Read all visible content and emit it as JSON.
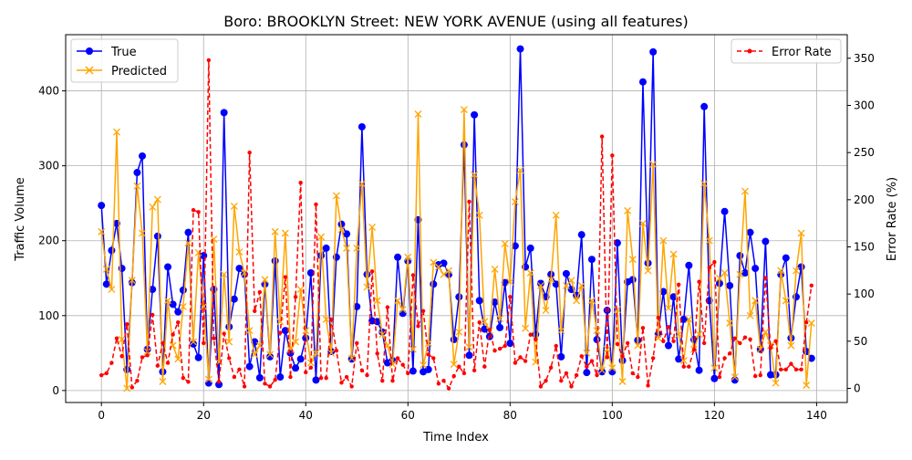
{
  "chart_data": {
    "type": "line",
    "title": "Boro: BROOKLYN Street: NEW YORK AVENUE (using all features)",
    "xlabel": "Time Index",
    "ylabel": "Traffic Volume",
    "y2label": "Error Rate (%)",
    "xlim": [
      -7,
      146
    ],
    "ylim": [
      -16,
      475
    ],
    "y2lim": [
      -15,
      375
    ],
    "xticks": [
      0,
      20,
      40,
      60,
      80,
      100,
      120,
      140
    ],
    "yticks": [
      0,
      100,
      200,
      300,
      400
    ],
    "y2ticks": [
      0,
      50,
      100,
      150,
      200,
      250,
      300,
      350
    ],
    "grid": true,
    "legend_left_placement": "upper-left",
    "legend_right_placement": "upper-right",
    "x": [
      0,
      1,
      2,
      3,
      4,
      5,
      6,
      7,
      8,
      9,
      10,
      11,
      12,
      13,
      14,
      15,
      16,
      17,
      18,
      19,
      20,
      21,
      22,
      23,
      24,
      25,
      26,
      27,
      28,
      29,
      30,
      31,
      32,
      33,
      34,
      35,
      36,
      37,
      38,
      39,
      40,
      41,
      42,
      43,
      44,
      45,
      46,
      47,
      48,
      49,
      50,
      51,
      52,
      53,
      54,
      55,
      56,
      57,
      58,
      59,
      60,
      61,
      62,
      63,
      64,
      65,
      66,
      67,
      68,
      69,
      70,
      71,
      72,
      73,
      74,
      75,
      76,
      77,
      78,
      79,
      80,
      81,
      82,
      83,
      84,
      85,
      86,
      87,
      88,
      89,
      90,
      91,
      92,
      93,
      94,
      95,
      96,
      97,
      98,
      99,
      100,
      101,
      102,
      103,
      104,
      105,
      106,
      107,
      108,
      109,
      110,
      111,
      112,
      113,
      114,
      115,
      116,
      117,
      118,
      119,
      120,
      121,
      122,
      123,
      124,
      125,
      126,
      127,
      128,
      129,
      130,
      131,
      132,
      133,
      134,
      135,
      136,
      137,
      138,
      139
    ],
    "series": [
      {
        "name": "True",
        "axis": "left",
        "color": "#0000ff",
        "marker": "circle",
        "values": [
          247,
          142,
          187,
          223,
          163,
          28,
          144,
          291,
          313,
          55,
          135,
          206,
          25,
          165,
          115,
          105,
          134,
          211,
          62,
          44,
          180,
          10,
          135,
          8,
          371,
          85,
          122,
          163,
          155,
          32,
          65,
          17,
          142,
          45,
          173,
          18,
          80,
          50,
          30,
          42,
          70,
          157,
          14,
          180,
          190,
          52,
          178,
          222,
          209,
          42,
          112,
          352,
          155,
          93,
          92,
          78,
          37,
          40,
          178,
          103,
          173,
          26,
          228,
          25,
          28,
          142,
          168,
          170,
          155,
          68,
          125,
          328,
          47,
          368,
          120,
          82,
          72,
          118,
          84,
          144,
          63,
          193,
          456,
          165,
          190,
          75,
          143,
          125,
          155,
          142,
          45,
          156,
          135,
          127,
          208,
          24,
          175,
          68,
          25,
          107,
          25,
          197,
          40,
          145,
          148,
          67,
          412,
          170,
          452,
          75,
          132,
          60,
          125,
          42,
          95,
          167,
          68,
          27,
          379,
          120,
          16,
          143,
          239,
          140,
          14,
          180,
          157,
          211,
          163,
          55,
          199,
          21,
          21,
          155,
          177,
          70,
          125,
          165,
          52,
          43
        ]
      },
      {
        "name": "Predicted",
        "axis": "left",
        "color": "#ffa500",
        "marker": "x",
        "values": [
          212,
          162,
          135,
          345,
          68,
          3,
          147,
          273,
          210,
          52,
          245,
          255,
          12,
          120,
          60,
          42,
          112,
          197,
          65,
          184,
          112,
          15,
          202,
          38,
          155,
          65,
          246,
          185,
          157,
          80,
          48,
          60,
          148,
          48,
          212,
          92,
          210,
          55,
          65,
          135,
          80,
          37,
          50,
          205,
          95,
          50,
          260,
          215,
          190,
          43,
          190,
          276,
          138,
          218,
          120,
          75,
          60,
          35,
          120,
          108,
          178,
          55,
          369,
          34,
          63,
          171,
          165,
          155,
          160,
          35,
          78,
          375,
          58,
          288,
          234,
          92,
          80,
          162,
          96,
          196,
          145,
          252,
          294,
          83,
          157,
          38,
          140,
          107,
          148,
          234,
          80,
          140,
          147,
          120,
          140,
          50,
          120,
          80,
          27,
          55,
          30,
          108,
          12,
          240,
          175,
          60,
          223,
          160,
          302,
          70,
          200,
          110,
          182,
          75,
          40,
          95,
          55,
          75,
          276,
          200,
          30,
          150,
          157,
          90,
          18,
          155,
          266,
          100,
          120,
          55,
          78,
          60,
          10,
          160,
          120,
          60,
          160,
          210,
          7,
          90
        ]
      },
      {
        "name": "Error Rate",
        "axis": "right",
        "color": "#ff0000",
        "marker": "dot",
        "dashed": true,
        "values": [
          14,
          16,
          27,
          53,
          34,
          68,
          1,
          8,
          33,
          35,
          78,
          24,
          48,
          27,
          57,
          70,
          11,
          7,
          189,
          187,
          48,
          348,
          53,
          7,
          58,
          32,
          12,
          20,
          2,
          250,
          82,
          102,
          5,
          2,
          9,
          59,
          118,
          12,
          97,
          218,
          17,
          22,
          195,
          11,
          11,
          73,
          40,
          6,
          12,
          2,
          48,
          19,
          14,
          124,
          37,
          8,
          86,
          8,
          32,
          25,
          16,
          120,
          66,
          82,
          36,
          32,
          5,
          8,
          0,
          13,
          23,
          16,
          198,
          19,
          70,
          23,
          62,
          40,
          42,
          45,
          97,
          27,
          33,
          29,
          57,
          52,
          2,
          8,
          22,
          45,
          8,
          16,
          2,
          14,
          34,
          23,
          29,
          14,
          267,
          33,
          247,
          47,
          34,
          48,
          16,
          12,
          64,
          3,
          32,
          75,
          50,
          65,
          50,
          110,
          23,
          23,
          41,
          113,
          48,
          128,
          134,
          12,
          32,
          37,
          53,
          48,
          54,
          52,
          13,
          14,
          117,
          43,
          50,
          20,
          20,
          26,
          20,
          20,
          70,
          109
        ]
      }
    ]
  }
}
